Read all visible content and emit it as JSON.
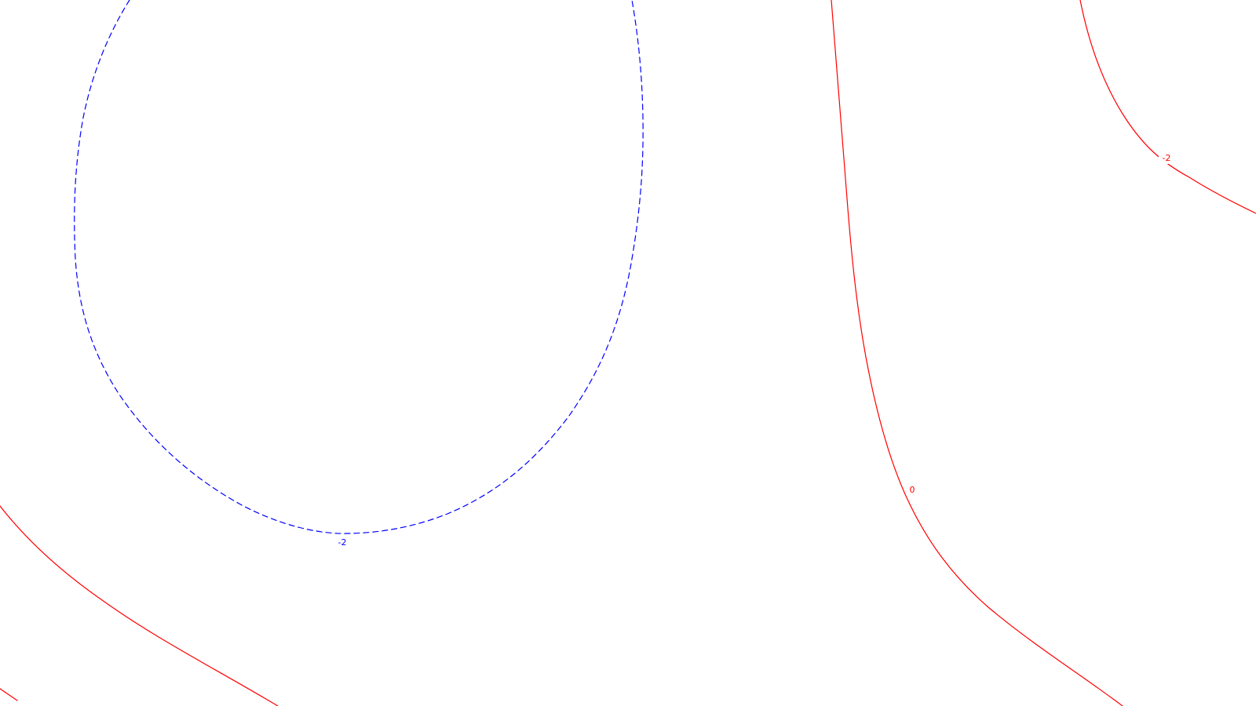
{
  "map": {
    "colors": {
      "background": "#ffffff",
      "negative_contour": "#0000ff",
      "positive_contour": "#ff0000"
    },
    "contours": [
      {
        "id": "blue-minus2",
        "value": "-2",
        "label": "-2",
        "color": "#0000ff",
        "style": "dashed"
      },
      {
        "id": "red-bottom-left",
        "value": "",
        "label": "",
        "color": "#ff0000",
        "style": "solid"
      },
      {
        "id": "red-zero",
        "value": "0",
        "label": "0",
        "color": "#ff0000",
        "style": "solid"
      },
      {
        "id": "red-minus2-topright",
        "value": "-2",
        "label": "-2",
        "color": "#ff0000",
        "style": "solid"
      }
    ]
  }
}
